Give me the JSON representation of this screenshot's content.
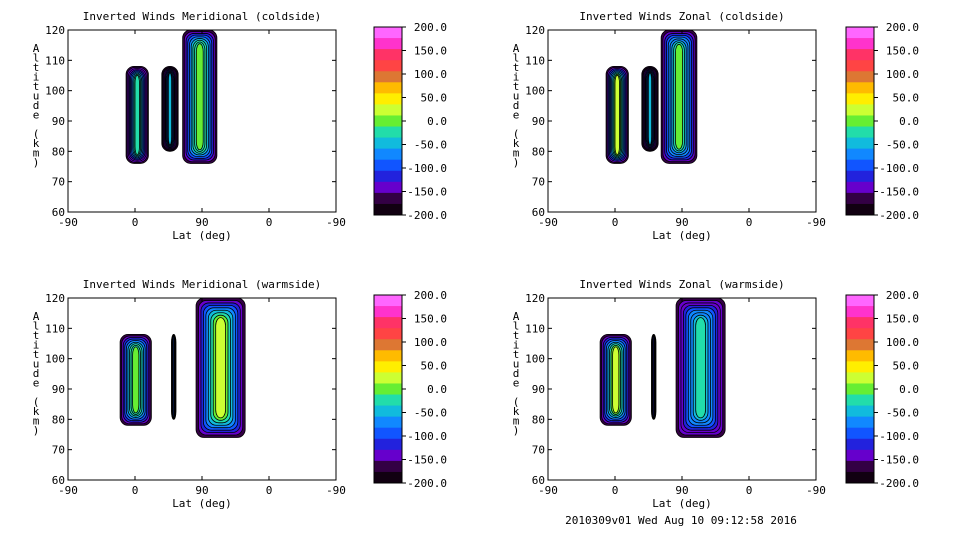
{
  "footer": "2010309v01 Wed Aug 10 09:12:58 2016",
  "colorbar": {
    "labels": [
      "200.0",
      "150.0",
      "100.0",
      "50.0",
      "0.0",
      "-50.0",
      "-100.0",
      "-150.0",
      "-200.0"
    ],
    "colors": [
      "#ff66ff",
      "#ff33cc",
      "#ff3366",
      "#ff4444",
      "#dd7733",
      "#ffbb00",
      "#ffee00",
      "#ccff33",
      "#66ee33",
      "#22ddaa",
      "#11bbdd",
      "#1188ff",
      "#1155ff",
      "#2222dd",
      "#6600cc",
      "#330044",
      "#110011"
    ]
  },
  "chart_data": [
    {
      "type": "heatmap",
      "title": "Inverted Winds Meridional (coldside)",
      "xlabel": "Lat (deg)",
      "ylabel": "Altitude (km)",
      "xticks": [
        "-90",
        "0",
        "90",
        "0",
        "-90"
      ],
      "yticks": [
        "60",
        "70",
        "80",
        "90",
        "100",
        "110",
        "120"
      ],
      "ylim": [
        60,
        120
      ],
      "zlim": [
        -200,
        200
      ],
      "colorbar_ticks": [
        200,
        150,
        100,
        50,
        0,
        -50,
        -100,
        -150,
        -200
      ],
      "blobs": [
        {
          "x": [
            -12,
            18
          ],
          "y": [
            76,
            108
          ],
          "center": -15
        },
        {
          "x": [
            36,
            58
          ],
          "y": [
            80,
            108
          ],
          "center": -60
        },
        {
          "x": [
            64,
            110
          ],
          "y": [
            76,
            120
          ],
          "center": 10
        }
      ]
    },
    {
      "type": "heatmap",
      "title": "Inverted Winds Zonal (coldside)",
      "xlabel": "Lat (deg)",
      "ylabel": "Altitude (km)",
      "xticks": [
        "-90",
        "0",
        "90",
        "0",
        "-90"
      ],
      "yticks": [
        "60",
        "70",
        "80",
        "90",
        "100",
        "110",
        "120"
      ],
      "ylim": [
        60,
        120
      ],
      "zlim": [
        -200,
        200
      ],
      "colorbar_ticks": [
        200,
        150,
        100,
        50,
        0,
        -50,
        -100,
        -150,
        -200
      ],
      "blobs": [
        {
          "x": [
            -12,
            18
          ],
          "y": [
            76,
            108
          ],
          "center": 20
        },
        {
          "x": [
            36,
            58
          ],
          "y": [
            80,
            108
          ],
          "center": -60
        },
        {
          "x": [
            62,
            110
          ],
          "y": [
            76,
            120
          ],
          "center": 5
        }
      ]
    },
    {
      "type": "heatmap",
      "title": "Inverted Winds Meridional (warmside)",
      "xlabel": "Lat (deg)",
      "ylabel": "Altitude (km)",
      "xticks": [
        "-90",
        "0",
        "90",
        "0",
        "-90"
      ],
      "yticks": [
        "60",
        "70",
        "80",
        "90",
        "100",
        "110",
        "120"
      ],
      "ylim": [
        60,
        120
      ],
      "zlim": [
        -200,
        200
      ],
      "colorbar_ticks": [
        200,
        150,
        100,
        50,
        0,
        -50,
        -100,
        -150,
        -200
      ],
      "blobs": [
        {
          "x": [
            -20,
            22
          ],
          "y": [
            78,
            108
          ],
          "center": 10
        },
        {
          "x": [
            49,
            55
          ],
          "y": [
            80,
            108
          ],
          "center": -100
        },
        {
          "x": [
            82,
            148
          ],
          "y": [
            74,
            120
          ],
          "center": 15
        }
      ]
    },
    {
      "type": "heatmap",
      "title": "Inverted Winds Zonal (warmside)",
      "xlabel": "Lat (deg)",
      "ylabel": "Altitude (km)",
      "xticks": [
        "-90",
        "0",
        "90",
        "0",
        "-90"
      ],
      "yticks": [
        "60",
        "70",
        "80",
        "90",
        "100",
        "110",
        "120"
      ],
      "ylim": [
        60,
        120
      ],
      "zlim": [
        -200,
        200
      ],
      "colorbar_ticks": [
        200,
        150,
        100,
        50,
        0,
        -50,
        -100,
        -150,
        -200
      ],
      "blobs": [
        {
          "x": [
            -20,
            22
          ],
          "y": [
            78,
            108
          ],
          "center": 20
        },
        {
          "x": [
            49,
            55
          ],
          "y": [
            80,
            108
          ],
          "center": -120
        },
        {
          "x": [
            82,
            148
          ],
          "y": [
            74,
            120
          ],
          "center": -30
        }
      ]
    }
  ]
}
